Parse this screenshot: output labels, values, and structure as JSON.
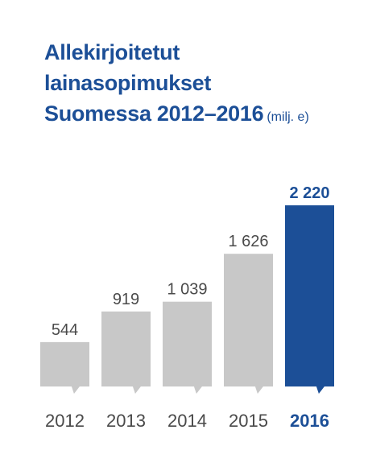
{
  "chart_data": {
    "type": "bar",
    "title_lines": [
      "Allekirjoitetut",
      "lainasopimukset",
      "Suomessa 2012–2016"
    ],
    "unit": "(milj. e)",
    "categories": [
      "2012",
      "2013",
      "2014",
      "2015",
      "2016"
    ],
    "values": [
      544,
      919,
      1039,
      1626,
      2220
    ],
    "value_labels": [
      "544",
      "919",
      "1 039",
      "1 626",
      "2 220"
    ],
    "highlight_index": 4,
    "colors": {
      "default": "#c8c8c8",
      "highlight": "#1c4f97",
      "title": "#1c4f97"
    },
    "ylim": [
      0,
      2220
    ],
    "grid": false,
    "legend": "none"
  }
}
